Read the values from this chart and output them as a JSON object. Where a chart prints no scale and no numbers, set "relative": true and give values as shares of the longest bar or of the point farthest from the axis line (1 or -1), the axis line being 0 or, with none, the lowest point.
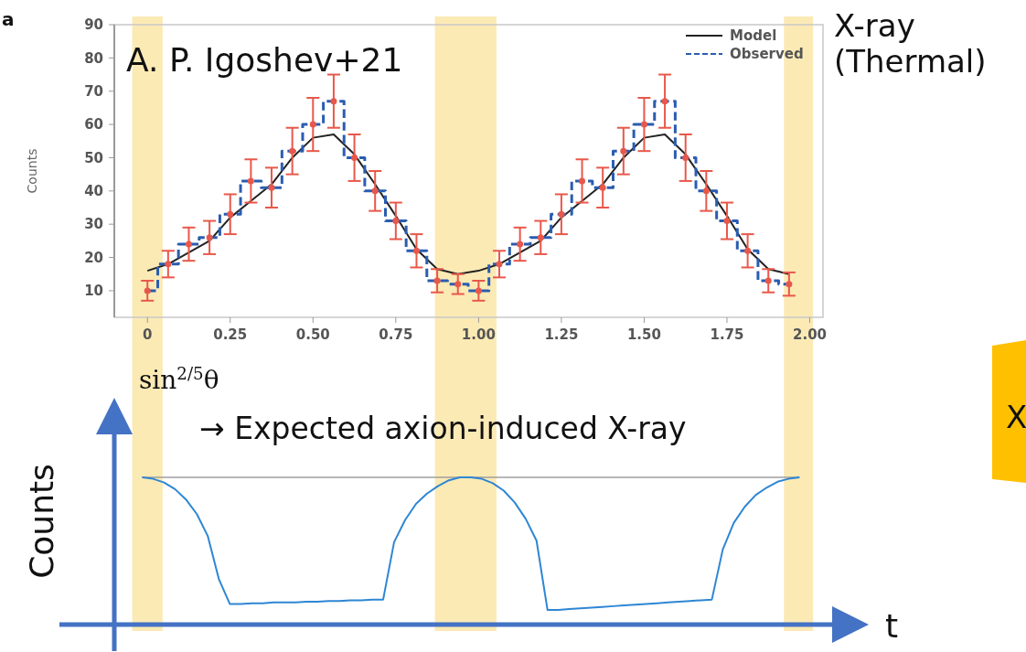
{
  "chart_data": [
    {
      "type": "line",
      "ylabel": "Counts",
      "x": [
        0,
        0.0625,
        0.125,
        0.1875,
        0.25,
        0.3125,
        0.375,
        0.4375,
        0.5,
        0.5625,
        0.625,
        0.6875,
        0.75,
        0.8125,
        0.875,
        0.9375,
        1,
        1.0625,
        1.125,
        1.1875,
        1.25,
        1.3125,
        1.375,
        1.4375,
        1.5,
        1.5625,
        1.625,
        1.6875,
        1.75,
        1.8125,
        1.875,
        1.9375
      ],
      "xlim": [
        -0.1,
        2.04
      ],
      "xticks": [
        {
          "value": 0,
          "label": "0"
        },
        0.25,
        {
          "value": 0.5,
          "label": "0.50"
        },
        0.75,
        {
          "value": 1,
          "label": "1.00"
        },
        1.25,
        {
          "value": 1.5,
          "label": "1.50"
        },
        1.75,
        {
          "value": 2,
          "label": "2.00"
        }
      ],
      "ylim": [
        2,
        90
      ],
      "yticks": [
        10,
        20,
        30,
        40,
        50,
        60,
        70,
        80,
        90
      ],
      "series": [
        {
          "name": "Model",
          "color": "#222222",
          "line_style": "solid",
          "values": [
            16,
            18,
            21.5,
            25,
            32,
            37,
            42,
            50,
            56,
            57,
            51,
            42,
            32.5,
            22.5,
            16.5,
            15,
            16,
            18,
            21.5,
            25,
            32,
            37,
            42,
            50,
            56,
            57,
            51,
            42,
            32.5,
            22.5,
            16.5,
            15
          ]
        },
        {
          "name": "Observed",
          "type": "step",
          "color": "#2a5db0",
          "line_style": "dashed",
          "values": [
            10,
            18,
            24,
            26,
            33,
            43,
            41,
            52,
            60,
            67,
            50,
            40,
            31,
            22,
            13,
            12,
            10,
            18,
            24,
            26,
            33,
            43,
            41,
            52,
            60,
            67,
            50,
            40,
            31,
            22,
            13,
            12
          ]
        },
        {
          "type": "scatter",
          "color": "#e8584a",
          "marker": "circle",
          "values": [
            10,
            18,
            24,
            26,
            33,
            43,
            41,
            52,
            60,
            67,
            50,
            40,
            31,
            22,
            13,
            12,
            10,
            18,
            24,
            26,
            33,
            43,
            41,
            52,
            60,
            67,
            50,
            40,
            31,
            22,
            13,
            12
          ],
          "errors": [
            3,
            4,
            5,
            5,
            6,
            6.5,
            6,
            7,
            8,
            8,
            7,
            6,
            5.5,
            5,
            3.5,
            3,
            3,
            4,
            5,
            5,
            6,
            6.5,
            6,
            7,
            8,
            8,
            7,
            6,
            5.5,
            5,
            3.5,
            3.5
          ]
        }
      ],
      "legend": "top right",
      "bands": [
        {
          "axis": "x",
          "from": -0.046,
          "to": 0.046,
          "color": "#f9d66b"
        },
        {
          "axis": "x",
          "from": 0.868,
          "to": 1.054,
          "color": "#f9d66b"
        },
        {
          "axis": "x",
          "from": 1.922,
          "to": 2.01,
          "color": "#f9d66b"
        }
      ],
      "annotations": [
        "a",
        "A. P. Igoshev+21",
        "X-ray (Thermal)"
      ]
    },
    {
      "type": "line",
      "relative": true,
      "xlabel": "t",
      "ylabel": "Counts",
      "categories": [
        null,
        null,
        null,
        null,
        null,
        null,
        null,
        null,
        null,
        null,
        null,
        null,
        null,
        null,
        null,
        null,
        null,
        null,
        null,
        null,
        null,
        null,
        null,
        null,
        null,
        null,
        null,
        null,
        null,
        null,
        null,
        null,
        null,
        null,
        null,
        null,
        null,
        null,
        null,
        null,
        null,
        null,
        null,
        null,
        null,
        null,
        null,
        null,
        null,
        null,
        null,
        null,
        null,
        null,
        null,
        null,
        null,
        null,
        null,
        null,
        null
      ],
      "series": [
        {
          "color": "#2e86d4",
          "values": [
            1,
            0.99,
            0.965,
            0.92,
            0.85,
            0.75,
            0.6,
            0.31,
            0.14,
            0.14,
            0.145,
            0.145,
            0.15,
            0.15,
            0.15,
            0.155,
            0.155,
            0.16,
            0.16,
            0.165,
            0.165,
            0.17,
            0.17,
            0.56,
            0.71,
            0.82,
            0.89,
            0.94,
            0.98,
            1,
            1,
            0.99,
            0.96,
            0.91,
            0.83,
            0.72,
            0.57,
            0.1,
            0.1,
            0.105,
            0.11,
            0.115,
            0.12,
            0.125,
            0.13,
            0.135,
            0.14,
            0.145,
            0.15,
            0.155,
            0.16,
            0.165,
            0.17,
            0.51,
            0.69,
            0.8,
            0.88,
            0.93,
            0.97,
            0.99,
            1
          ]
        }
      ],
      "ref_lines": [
        {
          "axis": "y",
          "value": 1,
          "color": "#999999"
        }
      ],
      "annotations": [
        "sin$^{2/5}$θ",
        "→ Expected axion-induced X-ray",
        "X"
      ]
    }
  ]
}
